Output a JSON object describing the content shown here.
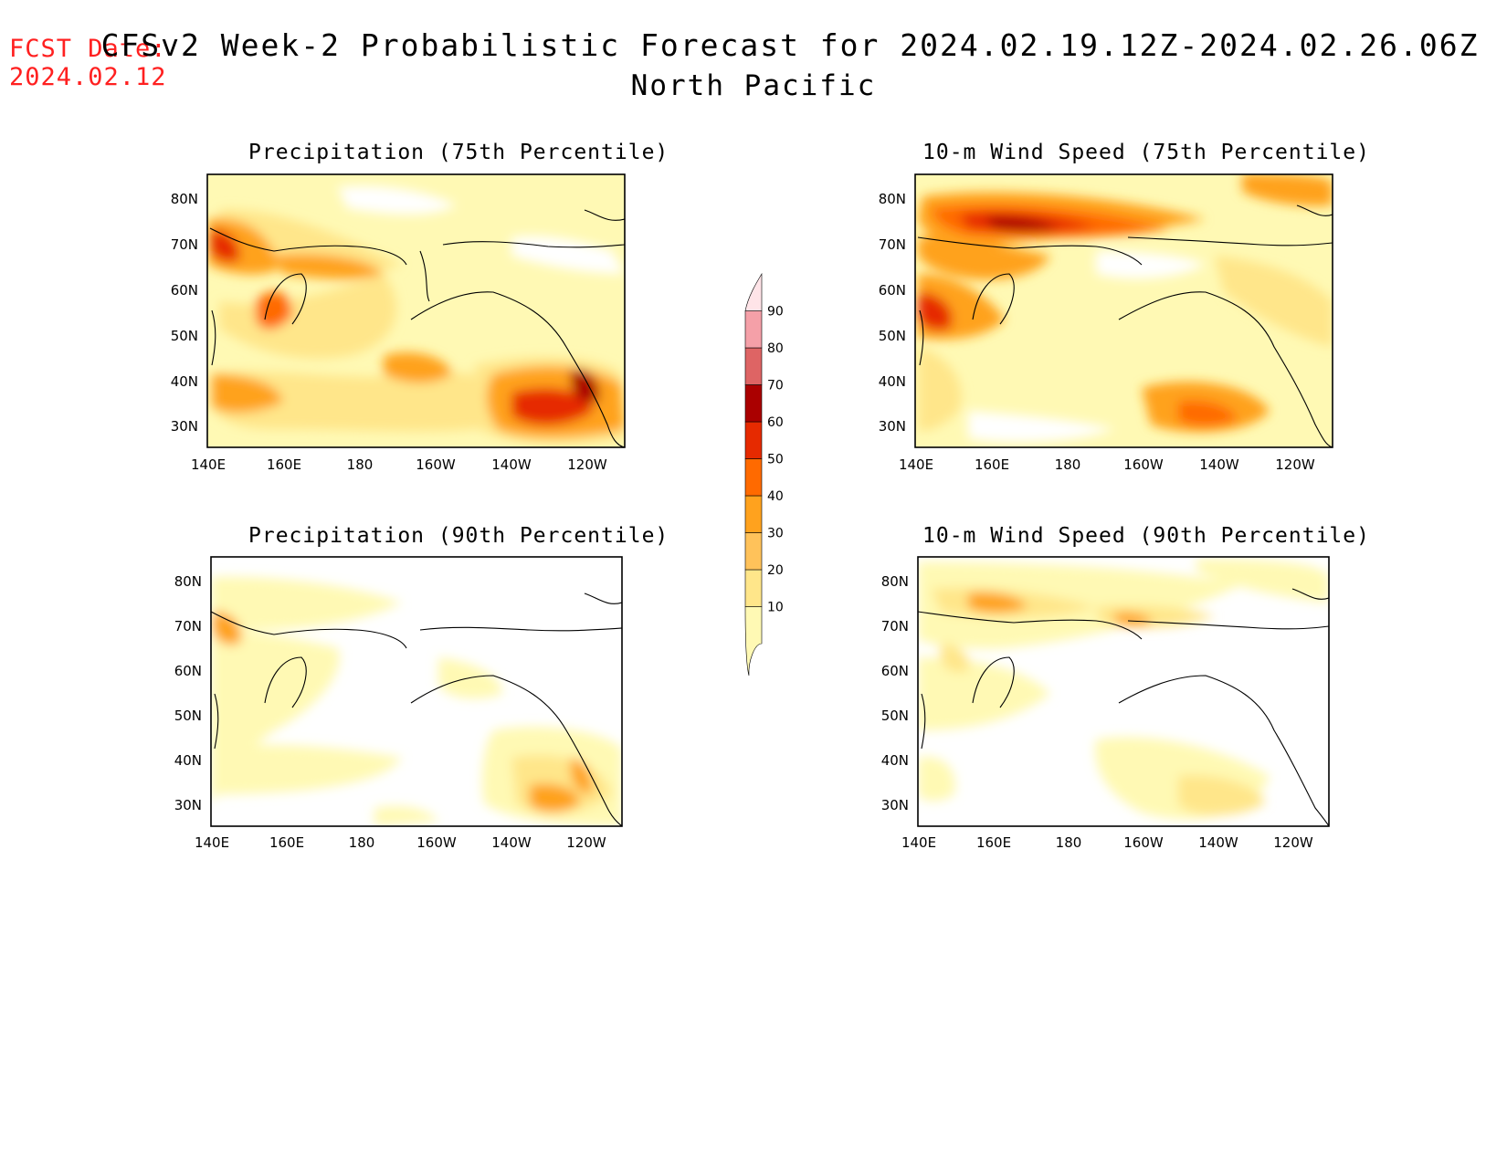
{
  "header": {
    "fcst_label": "FCST Date:",
    "fcst_date": "2024.02.12",
    "title": "CFSv2 Week-2 Probabilistic Forecast for 2024.02.19.12Z-2024.02.26.06Z",
    "region": "North Pacific"
  },
  "panels": [
    {
      "title": "Precipitation (75th Percentile)"
    },
    {
      "title": "10-m Wind Speed (75th Percentile)"
    },
    {
      "title": "Precipitation (90th Percentile)"
    },
    {
      "title": "10-m Wind Speed (90th Percentile)"
    }
  ],
  "axes": {
    "lat_labels": [
      "80N",
      "70N",
      "60N",
      "50N",
      "40N",
      "30N"
    ],
    "lon_labels": [
      "140E",
      "160E",
      "180",
      "160W",
      "140W",
      "120W"
    ]
  },
  "colorbar": {
    "levels": [
      "10",
      "20",
      "30",
      "40",
      "50",
      "60",
      "70",
      "80",
      "90"
    ],
    "colors": [
      "#fff9b4",
      "#ffe68a",
      "#ffc25a",
      "#ffa21e",
      "#ff6a00",
      "#e62a00",
      "#aa0000",
      "#de6464",
      "#f5a0a8",
      "#ffe4e8"
    ]
  }
}
